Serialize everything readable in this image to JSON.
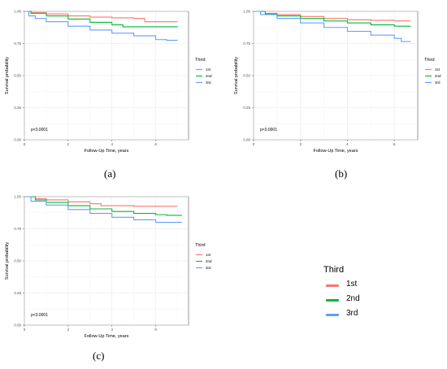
{
  "figure": {
    "big_legend": {
      "title": "Third",
      "items": [
        {
          "label": "1st",
          "color": "#F8766D"
        },
        {
          "label": "2nd",
          "color": "#00BA38"
        },
        {
          "label": "3rd",
          "color": "#619CFF"
        }
      ]
    }
  },
  "chart_data": [
    {
      "type": "line",
      "caption": "(a)",
      "xlabel": "Follow-Up Time, years",
      "ylabel": "Survival probability",
      "xlim": [
        0,
        7.5
      ],
      "ylim": [
        0,
        1
      ],
      "x_ticks": [
        "0",
        "2",
        "4",
        "6"
      ],
      "y_ticks": [
        "0.00",
        "0.25",
        "0.50",
        "0.75",
        "1.00"
      ],
      "annotation": "p<0.0001",
      "grid": true,
      "legend": {
        "title": "Third",
        "position": "right",
        "items": [
          "1st",
          "2nd",
          "3rd"
        ]
      },
      "series": [
        {
          "name": "1st",
          "color": "#F8766D",
          "x": [
            0,
            0.3,
            1,
            2,
            3,
            4,
            5,
            5.5,
            6,
            6.5,
            7
          ],
          "y": [
            1,
            0.99,
            0.98,
            0.965,
            0.955,
            0.95,
            0.945,
            0.92,
            0.92,
            0.92,
            0.92
          ]
        },
        {
          "name": "2nd",
          "color": "#00BA38",
          "x": [
            0,
            0.3,
            1,
            2,
            3,
            4,
            4.5,
            5,
            6,
            7
          ],
          "y": [
            1,
            0.985,
            0.965,
            0.94,
            0.915,
            0.895,
            0.88,
            0.88,
            0.88,
            0.88
          ]
        },
        {
          "name": "3rd",
          "color": "#619CFF",
          "x": [
            0,
            0.2,
            0.5,
            1,
            2,
            3,
            4,
            5,
            6,
            6.5,
            7
          ],
          "y": [
            1,
            0.965,
            0.945,
            0.92,
            0.885,
            0.855,
            0.83,
            0.81,
            0.78,
            0.775,
            0.775
          ]
        }
      ]
    },
    {
      "type": "line",
      "caption": "(b)",
      "xlabel": "Follow-Up Time, years",
      "ylabel": "Survival probability",
      "xlim": [
        0,
        7
      ],
      "ylim": [
        0,
        1
      ],
      "x_ticks": [
        "0",
        "2",
        "4",
        "6"
      ],
      "y_ticks": [
        "0.00",
        "0.25",
        "0.50",
        "0.75",
        "1.00"
      ],
      "annotation": "p<0.0001",
      "grid": true,
      "legend": {
        "title": "Third",
        "position": "right",
        "items": [
          "1st",
          "2nd",
          "3rd"
        ]
      },
      "series": [
        {
          "name": "1st",
          "color": "#F8766D",
          "x": [
            0,
            0.5,
            1,
            2,
            3,
            4,
            5,
            6,
            6.7
          ],
          "y": [
            1,
            0.985,
            0.975,
            0.96,
            0.945,
            0.935,
            0.93,
            0.925,
            0.925
          ]
        },
        {
          "name": "2nd",
          "color": "#00BA38",
          "x": [
            0,
            0.5,
            1,
            2,
            3,
            4,
            5,
            6,
            6.7
          ],
          "y": [
            1,
            0.98,
            0.965,
            0.945,
            0.925,
            0.91,
            0.895,
            0.885,
            0.885
          ]
        },
        {
          "name": "3rd",
          "color": "#619CFF",
          "x": [
            0,
            0.3,
            1,
            2,
            3,
            4,
            5,
            6,
            6.3,
            6.7
          ],
          "y": [
            1,
            0.975,
            0.945,
            0.91,
            0.875,
            0.845,
            0.815,
            0.79,
            0.765,
            0.765
          ]
        }
      ]
    },
    {
      "type": "line",
      "caption": "(c)",
      "xlabel": "Follow-Up Time, years",
      "ylabel": "Survival probability",
      "xlim": [
        0,
        7.5
      ],
      "ylim": [
        0,
        1
      ],
      "x_ticks": [
        "0",
        "2",
        "4",
        "6"
      ],
      "y_ticks": [
        "0.00",
        "0.25",
        "0.50",
        "0.75",
        "1.00"
      ],
      "annotation": "p<0.0001",
      "grid": true,
      "legend": {
        "title": "Third",
        "position": "right",
        "items": [
          "1st",
          "2nd",
          "3rd"
        ]
      },
      "series": [
        {
          "name": "1st",
          "color": "#F8766D",
          "x": [
            0,
            0.5,
            1,
            2,
            3,
            3.5,
            4,
            5,
            6,
            6.5,
            7
          ],
          "y": [
            1,
            0.985,
            0.975,
            0.96,
            0.945,
            0.93,
            0.93,
            0.925,
            0.925,
            0.925,
            0.925
          ]
        },
        {
          "name": "2nd",
          "color": "#00BA38",
          "x": [
            0,
            0.5,
            1,
            2,
            3,
            4,
            5,
            6,
            6.5,
            7.2
          ],
          "y": [
            1,
            0.975,
            0.955,
            0.93,
            0.905,
            0.885,
            0.87,
            0.86,
            0.855,
            0.855
          ]
        },
        {
          "name": "3rd",
          "color": "#619CFF",
          "x": [
            0,
            0.3,
            1,
            2,
            3,
            4,
            5,
            6,
            6.5,
            7.2
          ],
          "y": [
            1,
            0.965,
            0.935,
            0.9,
            0.87,
            0.84,
            0.82,
            0.8,
            0.8,
            0.8
          ]
        }
      ]
    }
  ]
}
